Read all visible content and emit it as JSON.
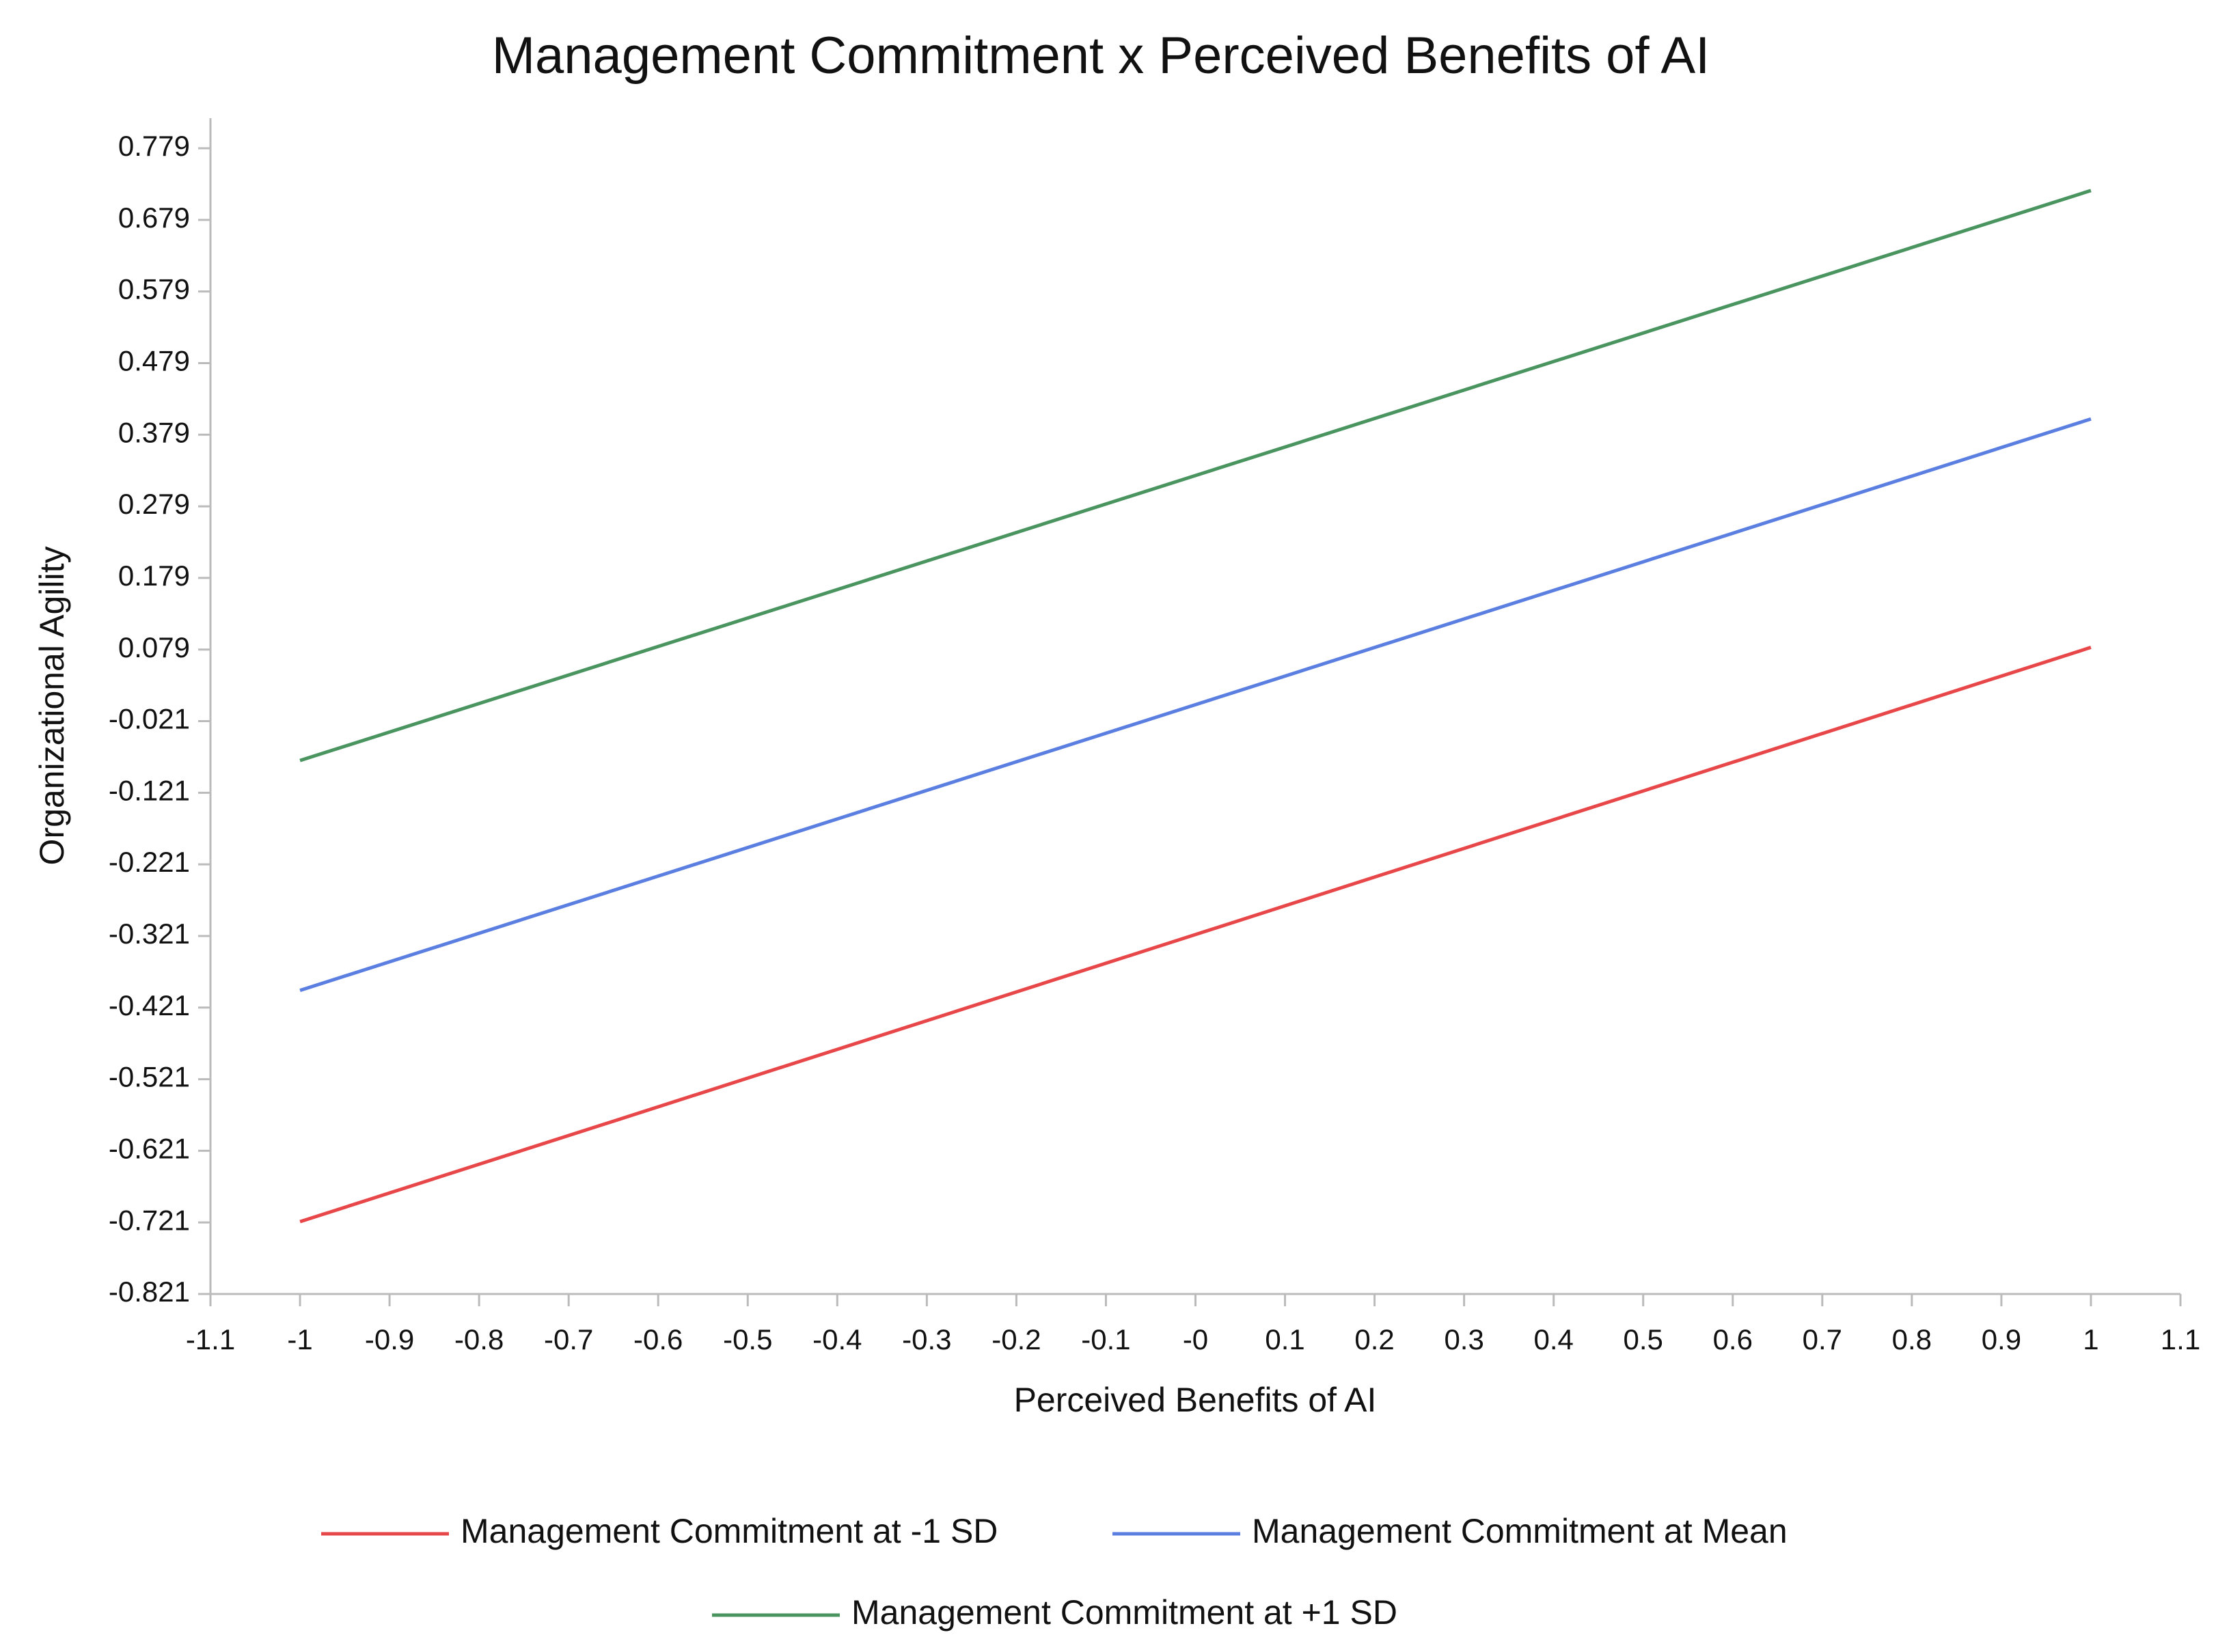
{
  "chart_data": {
    "type": "line",
    "title": "Management Commitment x Perceived Benefits of AI",
    "x_label": "Perceived Benefits of AI",
    "y_label": "Organizational Agility",
    "x": [
      -1,
      1
    ],
    "series": [
      {
        "name": "Management Commitment at -1 SD",
        "color": "#e8474a",
        "values": [
          -0.72,
          0.082
        ]
      },
      {
        "name": "Management Commitment at Mean",
        "color": "#5b7fe0",
        "values": [
          -0.397,
          0.401
        ]
      },
      {
        "name": "Management Commitment at +1 SD",
        "color": "#4a9460",
        "values": [
          -0.076,
          0.72
        ]
      }
    ],
    "xlim": [
      -1.1,
      1.1
    ],
    "xticks": [
      -1.1,
      -1,
      -0.9,
      -0.8,
      -0.7,
      -0.6,
      -0.5,
      -0.4,
      -0.3,
      -0.2,
      -0.1,
      {
        "value": 0,
        "label": "-0"
      },
      0.1,
      0.2,
      0.3,
      0.4,
      0.5,
      0.6,
      0.7,
      0.8,
      0.9,
      1,
      1.1
    ],
    "ylim": [
      -0.821,
      0.821
    ],
    "yticks": [
      -0.821,
      -0.721,
      -0.621,
      -0.521,
      -0.421,
      -0.321,
      -0.221,
      -0.121,
      -0.021,
      0.079,
      0.179,
      0.279,
      0.379,
      0.479,
      0.579,
      0.679,
      0.779
    ],
    "grid": false,
    "legend": "bottom"
  }
}
